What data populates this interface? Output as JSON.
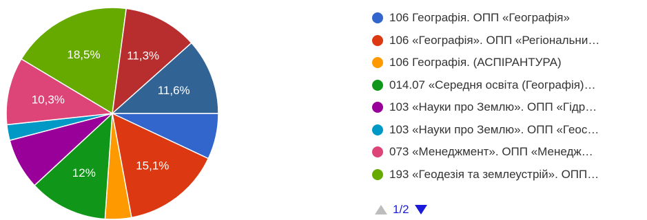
{
  "chart_data": {
    "type": "pie",
    "slices": [
      {
        "label": "106 Географія. ОПП «Географія»",
        "value": 7.0,
        "color": "#3366cc",
        "data_label": ""
      },
      {
        "label": "106 «Географія». ОПП «Регіональни…",
        "value": 15.1,
        "color": "#dc3912",
        "data_label": "15,1%"
      },
      {
        "label": "106 Географія. (АСПІРАНТУРА)",
        "value": 4.0,
        "color": "#ff9900",
        "data_label": ""
      },
      {
        "label": "014.07 «Середня освіта (Географія)…",
        "value": 12.0,
        "color": "#109618",
        "data_label": "12%"
      },
      {
        "label": "103 «Науки про Землю». ОПП «Гідр…",
        "value": 7.8,
        "color": "#990099",
        "data_label": ""
      },
      {
        "label": "103 «Науки про Землю». ОПП «Геос…",
        "value": 2.4,
        "color": "#0099c6",
        "data_label": ""
      },
      {
        "label": "073 «Менеджмент». ОПП «Менедж…",
        "value": 10.3,
        "color": "#dd4477",
        "data_label": "10,3%"
      },
      {
        "label": "193 «Геодезія та землеустрій». ОПП…",
        "value": 18.5,
        "color": "#66aa00",
        "data_label": "18,5%"
      },
      {
        "label": "",
        "value": 11.3,
        "color": "#b82e2e",
        "data_label": "11,3%"
      },
      {
        "label": "",
        "value": 11.6,
        "color": "#316395",
        "data_label": "11,6%"
      }
    ]
  },
  "pager": {
    "label": "1/2"
  }
}
